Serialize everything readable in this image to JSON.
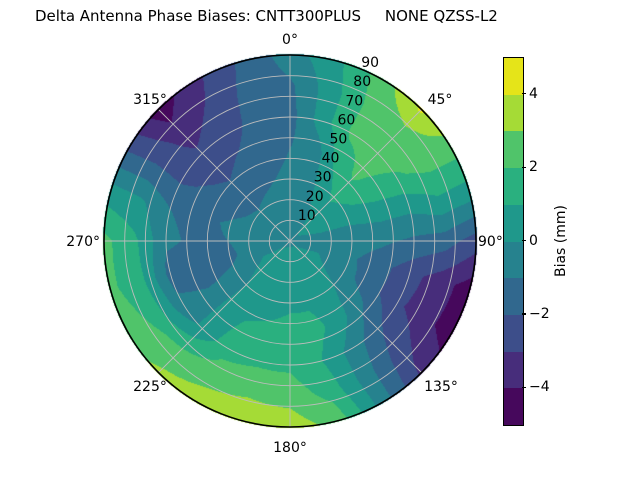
{
  "title": "Delta Antenna Phase Biases: CNTT300PLUS     NONE QZSS-L2",
  "polar": {
    "angular_tick_labels": [
      "0°",
      "45°",
      "90°",
      "135°",
      "180°",
      "225°",
      "270°",
      "315°"
    ],
    "radial_tick_labels": [
      "10",
      "20",
      "30",
      "40",
      "50",
      "60",
      "70",
      "80",
      "90"
    ]
  },
  "colorbar": {
    "label": "Bias (mm)",
    "tick_labels": [
      "4",
      "2",
      "0",
      "−2",
      "−4"
    ],
    "tick_values": [
      4,
      2,
      0,
      -2,
      -4
    ],
    "min_mm": -5,
    "max_mm": 5,
    "band_colors_low_to_high": [
      "#46085c",
      "#472d7b",
      "#3d4e8a",
      "#31688e",
      "#26828e",
      "#1f988b",
      "#2ab07f",
      "#50c46a",
      "#a5db36",
      "#e5e419"
    ]
  },
  "chart_data": {
    "type": "heatmap",
    "subtype": "polar_filled_contour",
    "title": "Delta Antenna Phase Biases: CNTT300PLUS     NONE QZSS-L2",
    "value_label": "Bias (mm)",
    "colormap": "viridis, 10 discrete bands",
    "levels_mm": [
      -5,
      -4,
      -3,
      -2,
      -1,
      0,
      1,
      2,
      3,
      4,
      5
    ],
    "angular_axis": "azimuth, 0° at top, clockwise, labels every 45°",
    "radial_axis": "zenith 0–90, rings every 10, labels at 22.5° azimuth",
    "azimuth_deg": [
      0,
      15,
      30,
      45,
      60,
      75,
      90,
      105,
      120,
      135,
      150,
      165,
      180,
      195,
      210,
      225,
      240,
      255,
      270,
      285,
      300,
      315,
      330,
      345,
      360
    ],
    "zenith_deg": [
      0,
      15,
      30,
      45,
      60,
      75,
      90
    ],
    "bias_mm": [
      [
        -0.1,
        -0.1,
        -0.1,
        -0.1,
        -0.1,
        -0.1,
        -0.1,
        -0.1,
        -0.1,
        -0.1,
        -0.1,
        -0.1,
        -0.1,
        -0.1,
        -0.1,
        -0.1,
        -0.1,
        -0.1,
        -0.1,
        -0.1,
        -0.1,
        -0.1,
        -0.1,
        -0.1,
        -0.1
      ],
      [
        -0.5,
        -0.4,
        -0.2,
        0.2,
        0.2,
        0.0,
        -0.3,
        -0.1,
        0.1,
        0.3,
        0.4,
        0.4,
        0.4,
        0.4,
        0.3,
        0.3,
        0.0,
        -0.4,
        -0.6,
        -0.6,
        -0.7,
        -0.7,
        -0.6,
        -0.6,
        -0.5
      ],
      [
        -0.8,
        -0.6,
        0.4,
        1.2,
        0.8,
        0.0,
        -0.5,
        -0.8,
        -0.6,
        0.0,
        0.6,
        0.8,
        0.8,
        0.6,
        0.6,
        0.0,
        -0.8,
        -1.2,
        -1.0,
        -0.9,
        -1.2,
        -1.4,
        -1.2,
        -1.0,
        -0.8
      ],
      [
        -1.0,
        -0.6,
        1.2,
        2.2,
        1.4,
        0.2,
        -0.8,
        -1.6,
        -1.6,
        -0.6,
        0.6,
        1.4,
        1.4,
        1.2,
        1.0,
        0.2,
        -1.0,
        -1.6,
        -1.2,
        -1.2,
        -1.8,
        -2.2,
        -1.8,
        -1.4,
        -1.0
      ],
      [
        -1.4,
        0.5,
        2.2,
        2.6,
        1.8,
        0.2,
        -1.2,
        -2.6,
        -2.8,
        -1.8,
        -0.4,
        1.0,
        1.8,
        1.8,
        1.6,
        0.2,
        -0.8,
        -1.4,
        -0.8,
        -1.0,
        -2.2,
        -2.8,
        -2.4,
        -1.6,
        -1.4
      ],
      [
        -1.2,
        0.5,
        2.2,
        2.6,
        2.4,
        0.8,
        -1.5,
        -3.5,
        -3.6,
        -2.6,
        -0.6,
        1.6,
        2.6,
        2.8,
        2.6,
        2.2,
        1.8,
        1.4,
        1.2,
        0.2,
        -2.0,
        -3.6,
        -2.8,
        -1.6,
        -1.2
      ],
      [
        -0.5,
        0.8,
        2.5,
        4.2,
        2.5,
        0.5,
        -2.5,
        -4.5,
        -4.6,
        -3.2,
        -0.5,
        2.6,
        3.6,
        3.7,
        3.5,
        3.2,
        2.6,
        2.2,
        2.3,
        0.5,
        -2.2,
        -4.6,
        -3.2,
        -1.8,
        -0.5
      ]
    ]
  }
}
